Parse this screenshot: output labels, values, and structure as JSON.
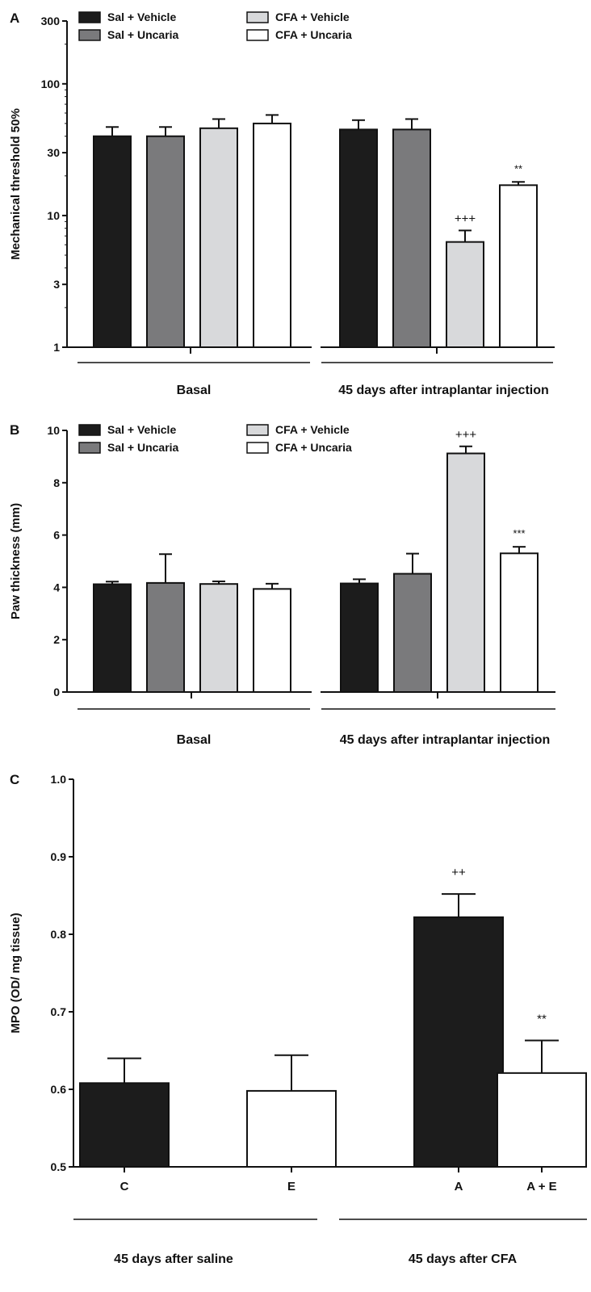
{
  "chart_data": [
    {
      "panel": "A",
      "type": "bar",
      "ylabel": "Mechanical threshold 50%",
      "yscale": "log",
      "ylim": [
        1,
        300
      ],
      "yticks": [
        1,
        3,
        10,
        30,
        100,
        300
      ],
      "groups": [
        "Basal",
        "45 days after intraplantar injection"
      ],
      "series": [
        {
          "name": "Sal + Vehicle",
          "color": "#1c1c1c",
          "values": [
            40,
            45
          ],
          "errors": [
            7,
            8
          ]
        },
        {
          "name": "Sal + Uncaria",
          "color": "#7a7a7c",
          "values": [
            40,
            45
          ],
          "errors": [
            7,
            9
          ]
        },
        {
          "name": "CFA + Vehicle",
          "color": "#d8d9db",
          "values": [
            46,
            6.3
          ],
          "errors": [
            8,
            1.4
          ]
        },
        {
          "name": "CFA + Uncaria",
          "color": "#ffffff",
          "values": [
            50,
            17
          ],
          "errors": [
            8,
            1
          ]
        }
      ],
      "annotations": [
        {
          "series": 2,
          "group": 1,
          "text": "+++"
        },
        {
          "series": 3,
          "group": 1,
          "text": "**"
        }
      ],
      "legend": "top-left"
    },
    {
      "panel": "B",
      "type": "bar",
      "ylabel": "Paw thickness (mm)",
      "ylim": [
        0,
        10
      ],
      "yticks": [
        0,
        2,
        4,
        6,
        8,
        10
      ],
      "groups": [
        "Basal",
        "45 days after intraplantar injection"
      ],
      "series": [
        {
          "name": "Sal + Vehicle",
          "color": "#1c1c1c",
          "values": [
            4.12,
            4.15
          ],
          "errors": [
            0.1,
            0.16
          ]
        },
        {
          "name": "Sal + Uncaria",
          "color": "#7a7a7c",
          "values": [
            4.17,
            4.52
          ],
          "errors": [
            1.1,
            0.77
          ]
        },
        {
          "name": "CFA + Vehicle",
          "color": "#d8d9db",
          "values": [
            4.13,
            9.12
          ],
          "errors": [
            0.1,
            0.27
          ]
        },
        {
          "name": "CFA + Uncaria",
          "color": "#ffffff",
          "values": [
            3.94,
            5.3
          ],
          "errors": [
            0.2,
            0.25
          ]
        }
      ],
      "annotations": [
        {
          "series": 2,
          "group": 1,
          "text": "+++"
        },
        {
          "series": 3,
          "group": 1,
          "text": "***"
        }
      ],
      "legend": "top-left"
    },
    {
      "panel": "C",
      "type": "bar",
      "ylabel": "MPO (OD/ mg tissue)",
      "ylim": [
        0.5,
        1.0
      ],
      "yticks": [
        "0.5",
        "0.6",
        "0.7",
        "0.8",
        "0.9",
        "1.0"
      ],
      "categories": [
        "C",
        "E",
        "A",
        "A + E"
      ],
      "values": [
        0.608,
        0.598,
        0.822,
        0.621
      ],
      "errors": [
        0.032,
        0.046,
        0.03,
        0.042
      ],
      "colors": [
        "#1c1c1c",
        "#ffffff",
        "#1c1c1c",
        "#ffffff"
      ],
      "groups": [
        "45 days after saline",
        "45 days after CFA"
      ],
      "annotations": [
        {
          "index": 2,
          "text": "++"
        },
        {
          "index": 3,
          "text": "**"
        }
      ]
    }
  ]
}
